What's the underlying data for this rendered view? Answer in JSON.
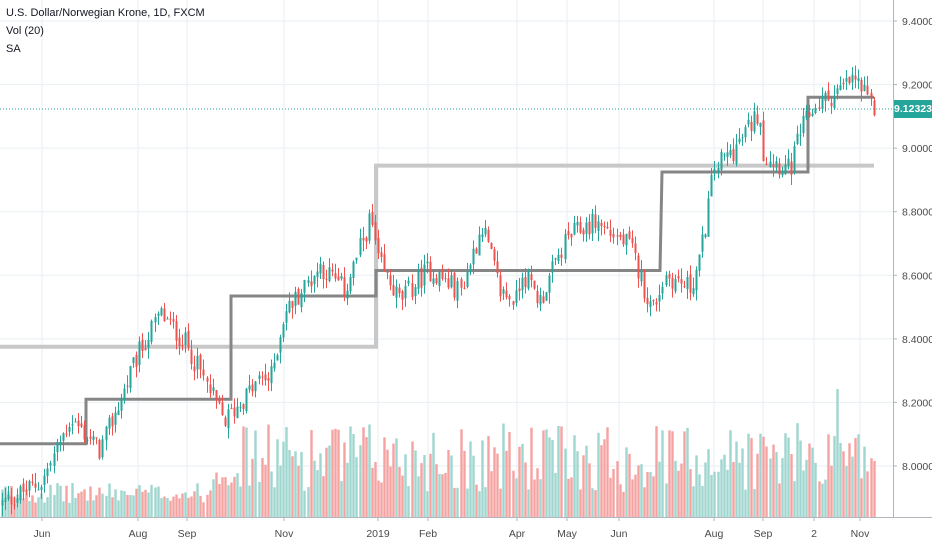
{
  "legend": {
    "symbol": "U.S. Dollar/Norwegian Krone, 1D, FXCM",
    "volume": "Vol (20)",
    "study": "SA"
  },
  "last_price": "9.12323",
  "colors": {
    "up": "#26a69a",
    "down": "#ef5350",
    "vol_up": "#9fd6cf",
    "vol_down": "#f5a3a1",
    "sa_dark": "#868686",
    "sa_light": "#c8c8c8",
    "last_line": "#26a69a",
    "grid": "#e9eff3",
    "axis_text": "#4a4a4a"
  },
  "chart_data": {
    "type": "candlestick",
    "title": "U.S. Dollar/Norwegian Krone, 1D, FXCM",
    "x_ticks": [
      "Jun",
      "Aug",
      "Sep",
      "Nov",
      "2019",
      "Feb",
      "Apr",
      "May",
      "Jun",
      "Aug",
      "Sep",
      "2",
      "Nov"
    ],
    "y_ticks": [
      "9.40000",
      "9.20000",
      "9.00000",
      "8.80000",
      "8.60000",
      "8.40000",
      "8.20000",
      "8.00000"
    ],
    "ylim": [
      7.87,
      9.44
    ],
    "last_close": 9.12323,
    "anchors": [
      {
        "x": "Start",
        "y": 7.88
      },
      {
        "x": "Jun",
        "y": 7.95
      },
      {
        "x": "mid-Jun",
        "y": 8.15
      },
      {
        "x": "Jul",
        "y": 8.05
      },
      {
        "x": "Aug",
        "y": 8.35
      },
      {
        "x": "mid-Aug",
        "y": 8.48
      },
      {
        "x": "Sep",
        "y": 8.38
      },
      {
        "x": "late-Sep",
        "y": 8.14
      },
      {
        "x": "Oct",
        "y": 8.28
      },
      {
        "x": "mid-Oct",
        "y": 8.27
      },
      {
        "x": "Nov",
        "y": 8.48
      },
      {
        "x": "mid-Nov",
        "y": 8.63
      },
      {
        "x": "Dec",
        "y": 8.55
      },
      {
        "x": "late-Dec",
        "y": 8.78
      },
      {
        "x": "2019",
        "y": 8.64
      },
      {
        "x": "mid-Jan",
        "y": 8.52
      },
      {
        "x": "Feb",
        "y": 8.62
      },
      {
        "x": "mid-Feb",
        "y": 8.55
      },
      {
        "x": "late-Feb",
        "y": 8.76
      },
      {
        "x": "early-Mar",
        "y": 8.55
      },
      {
        "x": "Mar",
        "y": 8.52
      },
      {
        "x": "Apr",
        "y": 8.62
      },
      {
        "x": "mid-Apr",
        "y": 8.52
      },
      {
        "x": "May",
        "y": 8.72
      },
      {
        "x": "mid-May",
        "y": 8.77
      },
      {
        "x": "late-May",
        "y": 8.69
      },
      {
        "x": "Jun",
        "y": 8.49
      },
      {
        "x": "mid-Jun",
        "y": 8.6
      },
      {
        "x": "late-Jun",
        "y": 8.56
      },
      {
        "x": "Jul",
        "y": 8.65
      },
      {
        "x": "Aug",
        "y": 8.94
      },
      {
        "x": "mid-Aug",
        "y": 9.0
      },
      {
        "x": "late-Aug",
        "y": 9.12
      },
      {
        "x": "Sep",
        "y": 8.98
      },
      {
        "x": "mid-Sep",
        "y": 8.93
      },
      {
        "x": "late-Sep",
        "y": 9.05
      },
      {
        "x": "2",
        "y": 9.13
      },
      {
        "x": "mid-Oct",
        "y": 9.17
      },
      {
        "x": "late-Oct",
        "y": 9.22
      },
      {
        "x": "Nov",
        "y": 9.12
      }
    ],
    "series": [
      {
        "name": "SA",
        "steps": [
          {
            "from": "Start",
            "to": "Jun",
            "value": 8.07
          },
          {
            "from": "Jun",
            "to": "Sep",
            "value": 8.21
          },
          {
            "from": "Sep",
            "to": "Nov",
            "value": 8.535
          },
          {
            "from": "Nov",
            "to": "2019",
            "value": 8.615
          },
          {
            "from": "2019",
            "to": "Jun",
            "value": 8.595
          },
          {
            "from": "Jun",
            "to": "Sep",
            "value": 8.925
          },
          {
            "from": "Sep",
            "to": "Nov",
            "value": 9.16
          }
        ]
      },
      {
        "name": "SA",
        "steps": [
          {
            "from": "Start",
            "to": "2019",
            "value": 8.375
          },
          {
            "from": "2019",
            "to": "Nov",
            "value": 8.945
          }
        ]
      }
    ]
  }
}
